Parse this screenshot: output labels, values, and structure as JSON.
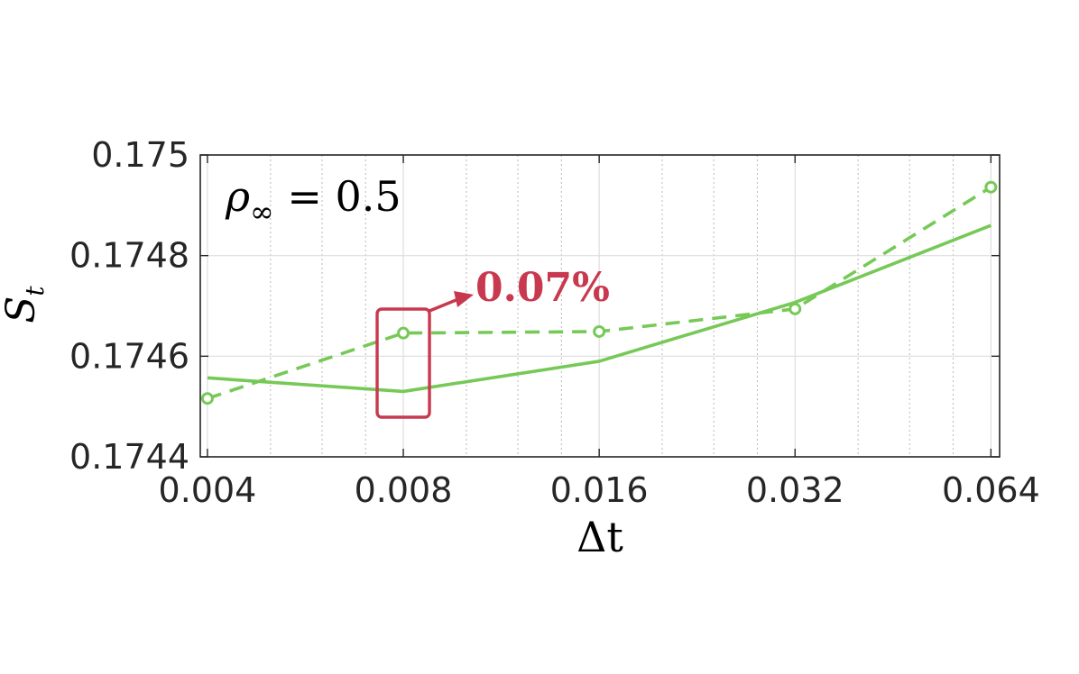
{
  "chart_data": {
    "type": "line",
    "xlabel": "Δt",
    "ylabel_main": "S",
    "ylabel_sub": "t",
    "x": [
      0.004,
      0.008,
      0.016,
      0.032,
      0.064
    ],
    "x_scale": "log2",
    "xlim": [
      0.0039,
      0.066
    ],
    "ylim": [
      0.1744,
      0.175
    ],
    "x_ticks": [
      "0.004",
      "0.008",
      "0.016",
      "0.032",
      "0.064"
    ],
    "y_ticks": [
      {
        "value": 0.1744,
        "label": "0.1744"
      },
      {
        "value": 0.1746,
        "label": "0.1746"
      },
      {
        "value": 0.1748,
        "label": "0.1748"
      },
      {
        "value": 0.175,
        "label": "0.175"
      }
    ],
    "grid": true,
    "series": [
      {
        "style": "solid",
        "color": "#77c957",
        "marker": "none",
        "values": [
          0.174557,
          0.17453,
          0.17459,
          0.174707,
          0.17486
        ]
      },
      {
        "style": "dashed",
        "color": "#77c957",
        "marker": "circle",
        "values": [
          0.174516,
          0.174646,
          0.174649,
          0.174694,
          0.174936
        ]
      }
    ],
    "annotations": {
      "rho_label": "ρ∞ = 0.5",
      "rho_symbol": "ρ",
      "rho_sub": "∞",
      "rho_rest": " = 0.5",
      "highlight_text": "0.07%",
      "highlight_x": 0.008,
      "highlight_color": "#c8394f"
    }
  }
}
